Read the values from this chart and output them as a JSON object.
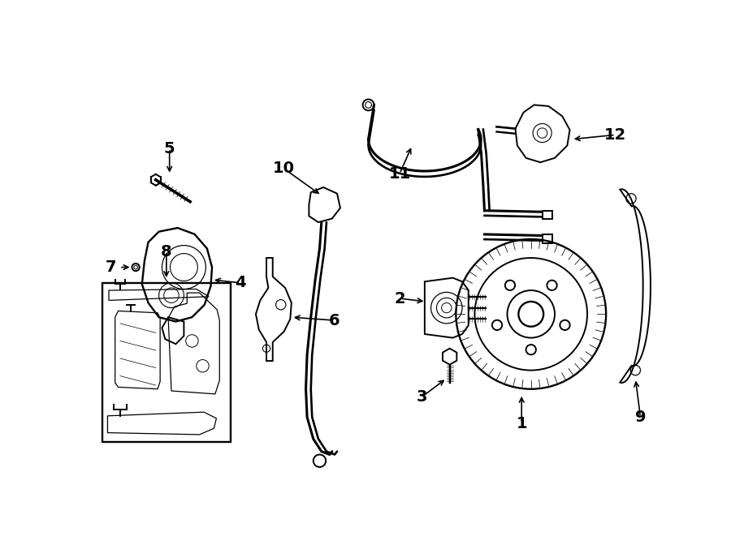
{
  "bg_color": "#ffffff",
  "line_color": "#000000",
  "figsize": [
    9.0,
    6.61
  ],
  "dpi": 100,
  "lw": 1.4
}
